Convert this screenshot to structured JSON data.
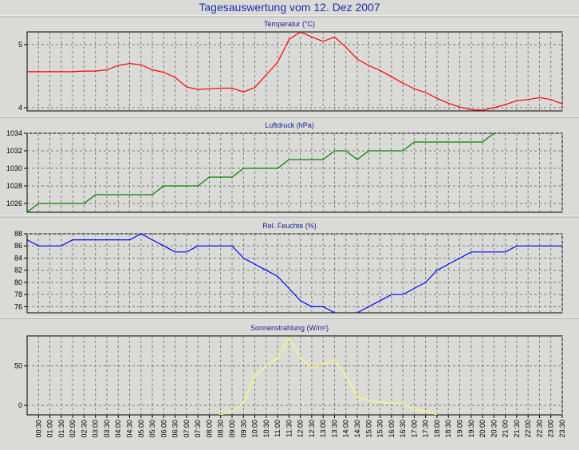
{
  "page": {
    "title": "Tagesauswertung vom 12. Dez 2007"
  },
  "chart_data": [
    {
      "type": "line",
      "title": "Temperatur (°C)",
      "color": "#ff0000",
      "ylim": [
        3.95,
        5.2
      ],
      "yticks": [
        4,
        5
      ],
      "yticklabels": [
        "4",
        "5"
      ],
      "x": [
        "00:00",
        "00:30",
        "01:00",
        "01:30",
        "02:00",
        "02:30",
        "03:00",
        "03:30",
        "04:00",
        "04:30",
        "05:00",
        "05:30",
        "06:00",
        "06:30",
        "07:00",
        "07:30",
        "08:00",
        "08:30",
        "09:00",
        "09:30",
        "10:00",
        "10:30",
        "11:00",
        "11:30",
        "12:00",
        "12:30",
        "13:00",
        "13:30",
        "14:00",
        "14:30",
        "15:00",
        "15:30",
        "16:00",
        "16:30",
        "17:00",
        "17:30",
        "18:00",
        "18:30",
        "19:00",
        "19:30",
        "20:00",
        "20:30",
        "21:00",
        "21:30",
        "22:00",
        "22:30",
        "23:00",
        "23:30"
      ],
      "values": [
        4.57,
        4.57,
        4.57,
        4.57,
        4.57,
        4.58,
        4.58,
        4.6,
        4.67,
        4.7,
        4.68,
        4.6,
        4.56,
        4.48,
        4.33,
        4.29,
        4.3,
        4.31,
        4.31,
        4.25,
        4.32,
        4.52,
        4.72,
        5.08,
        5.2,
        5.12,
        5.05,
        5.12,
        4.96,
        4.77,
        4.67,
        4.59,
        4.49,
        4.39,
        4.3,
        4.24,
        4.15,
        4.07,
        4.01,
        3.97,
        3.96,
        4.0,
        4.05,
        4.11,
        4.13,
        4.16,
        4.13,
        4.06
      ]
    },
    {
      "type": "line",
      "title": "Luftdruck (hPa)",
      "color": "#008000",
      "ylim": [
        1025,
        1034
      ],
      "yticks": [
        1026,
        1028,
        1030,
        1032,
        1034
      ],
      "yticklabels": [
        "1026",
        "1028",
        "1030",
        "1032",
        "1034"
      ],
      "x": [
        "00:00",
        "00:30",
        "01:00",
        "01:30",
        "02:00",
        "02:30",
        "03:00",
        "03:30",
        "04:00",
        "04:30",
        "05:00",
        "05:30",
        "06:00",
        "06:30",
        "07:00",
        "07:30",
        "08:00",
        "08:30",
        "09:00",
        "09:30",
        "10:00",
        "10:30",
        "11:00",
        "11:30",
        "12:00",
        "12:30",
        "13:00",
        "13:30",
        "14:00",
        "14:30",
        "15:00",
        "15:30",
        "16:00",
        "16:30",
        "17:00",
        "17:30",
        "18:00",
        "18:30",
        "19:00",
        "19:30",
        "20:00",
        "20:30"
      ],
      "values": [
        1025,
        1026,
        1026,
        1026,
        1026,
        1026,
        1027,
        1027,
        1027,
        1027,
        1027,
        1027,
        1028,
        1028,
        1028,
        1028,
        1029,
        1029,
        1029,
        1030,
        1030,
        1030,
        1030,
        1031,
        1031,
        1031,
        1031,
        1032,
        1032,
        1031,
        1032,
        1032,
        1032,
        1032,
        1033,
        1033,
        1033,
        1033,
        1033,
        1033,
        1033,
        1034
      ]
    },
    {
      "type": "line",
      "title": "Rel. Feuchte (%)",
      "color": "#0000ff",
      "ylim": [
        75,
        88
      ],
      "yticks": [
        76,
        78,
        80,
        82,
        84,
        86,
        88
      ],
      "yticklabels": [
        "76",
        "78",
        "80",
        "82",
        "84",
        "86",
        "88"
      ],
      "x": [
        "00:00",
        "00:30",
        "01:00",
        "01:30",
        "02:00",
        "02:30",
        "03:00",
        "03:30",
        "04:00",
        "04:30",
        "05:00",
        "05:30",
        "06:00",
        "06:30",
        "07:00",
        "07:30",
        "08:00",
        "08:30",
        "09:00",
        "09:30",
        "10:00",
        "10:30",
        "11:00",
        "11:30",
        "12:00",
        "12:30",
        "13:00",
        "13:30",
        "14:00",
        "14:30",
        "15:00",
        "15:30",
        "16:00",
        "16:30",
        "17:00",
        "17:30",
        "18:00",
        "18:30",
        "19:00",
        "19:30",
        "20:00",
        "20:30",
        "21:00",
        "21:30",
        "22:00",
        "22:30",
        "23:00",
        "23:30"
      ],
      "values": [
        87,
        86,
        86,
        86,
        87,
        87,
        87,
        87,
        87,
        87,
        88,
        87,
        86,
        85,
        85,
        86,
        86,
        86,
        86,
        84,
        83,
        82,
        81,
        79,
        77,
        76,
        76,
        75,
        74,
        75,
        76,
        77,
        78,
        78,
        79,
        80,
        82,
        83,
        84,
        85,
        85,
        85,
        85,
        86,
        86,
        86,
        86,
        86
      ]
    },
    {
      "type": "line",
      "title": "Sonnenstrahlung (W/m²)",
      "color": "#ffff66",
      "ylim": [
        -12,
        88
      ],
      "yticks": [
        0,
        50
      ],
      "yticklabels": [
        "0",
        "50"
      ],
      "x": [
        "08:00",
        "08:30",
        "09:00",
        "09:30",
        "10:00",
        "10:30",
        "11:00",
        "11:30",
        "12:00",
        "12:30",
        "13:00",
        "13:30",
        "14:00",
        "14:30",
        "15:00",
        "15:30",
        "16:00",
        "16:30",
        "17:00",
        "17:30",
        "18:00"
      ],
      "values": [
        -15,
        -12,
        -8,
        3,
        38,
        50,
        60,
        85,
        60,
        48,
        52,
        57,
        38,
        10,
        7,
        4,
        3,
        2,
        -5,
        -8,
        -12
      ]
    }
  ],
  "xaxis": {
    "labels": [
      "00:30",
      "01:00",
      "01:30",
      "02:00",
      "02:30",
      "03:00",
      "03:30",
      "04:00",
      "04:30",
      "05:00",
      "05:30",
      "06:00",
      "06:30",
      "07:00",
      "07:30",
      "08:00",
      "08:30",
      "09:00",
      "09:30",
      "10:00",
      "10:30",
      "11:00",
      "11:30",
      "12:00",
      "12:30",
      "13:00",
      "13:30",
      "14:00",
      "14:30",
      "15:00",
      "15:30",
      "16:00",
      "16:30",
      "17:00",
      "17:30",
      "18:00",
      "18:30",
      "19:00",
      "19:30",
      "20:00",
      "20:30",
      "21:00",
      "21:30",
      "22:00",
      "22:30",
      "23:00",
      "23:30"
    ]
  }
}
